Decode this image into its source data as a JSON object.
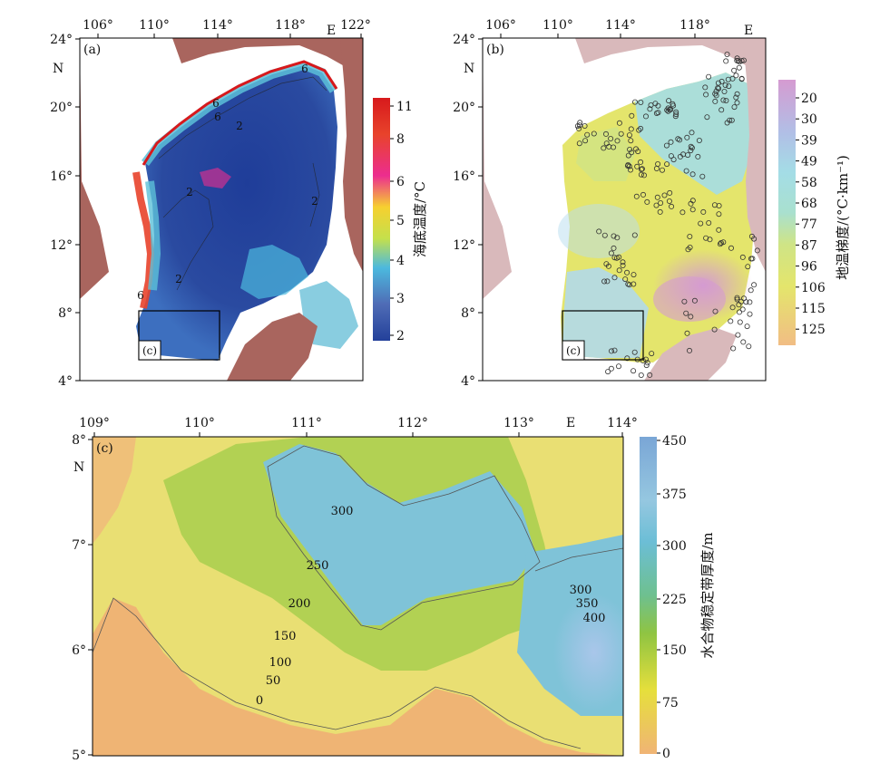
{
  "panels": {
    "a": {
      "label": "(a)",
      "inset_label": "(c)",
      "lon_ticks": [
        "106°",
        "110°",
        "114°",
        "118°",
        "122°"
      ],
      "lon_hemisphere": "E",
      "lat_ticks": [
        "24°",
        "20°",
        "16°",
        "12°",
        "8°",
        "4°"
      ],
      "lat_hemisphere": "N",
      "contour_labels": [
        "6",
        "6",
        "2",
        "2",
        "2",
        "2",
        "6",
        "6"
      ],
      "colorbar": {
        "title": "海底温度/°C",
        "ticks": [
          "11",
          "8",
          "6",
          "5",
          "4",
          "3",
          "2"
        ],
        "colors": [
          "#d7191c",
          "#e8432b",
          "#ec2d8f",
          "#f6d02f",
          "#c4e04c",
          "#4cb9de",
          "#4f6cb6",
          "#23409a"
        ]
      }
    },
    "b": {
      "label": "(b)",
      "inset_label": "(c)",
      "lon_ticks": [
        "106°",
        "110°",
        "114°",
        "118°"
      ],
      "lon_hemisphere": "E",
      "lat_ticks": [
        "24°",
        "20°",
        "16°",
        "12°",
        "8°",
        "4°"
      ],
      "lat_hemisphere": "N",
      "colorbar": {
        "title": "地温梯度/(°C·km⁻¹)",
        "ticks": [
          "20",
          "30",
          "39",
          "49",
          "58",
          "68",
          "77",
          "87",
          "96",
          "106",
          "115",
          "125"
        ],
        "colors": [
          "#d59bd1",
          "#c6a9de",
          "#b1bfe6",
          "#a6d2ec",
          "#a4dde6",
          "#a9e0cf",
          "#b9e3ac",
          "#cfe486",
          "#e4e56c",
          "#eddf6b",
          "#f1cf82",
          "#f1bd84"
        ]
      }
    },
    "c": {
      "label": "(c)",
      "lon_ticks": [
        "109°",
        "110°",
        "111°",
        "112°",
        "113°",
        "114°"
      ],
      "lon_hemisphere": "E",
      "lat_ticks": [
        "8°",
        "7°",
        "6°",
        "5°"
      ],
      "lat_hemisphere": "N",
      "contour_labels": [
        "300",
        "250",
        "200",
        "150",
        "100",
        "50",
        "0",
        "300",
        "350",
        "400"
      ],
      "colorbar": {
        "title": "水合物稳定带厚度/m",
        "ticks": [
          "450",
          "375",
          "300",
          "225",
          "150",
          "75",
          "0"
        ],
        "colors": [
          "#7aa6d6",
          "#95c7e0",
          "#6cbed6",
          "#6ec08f",
          "#8fc442",
          "#e6df3c",
          "#f2cc6e",
          "#f0b475"
        ]
      }
    }
  }
}
